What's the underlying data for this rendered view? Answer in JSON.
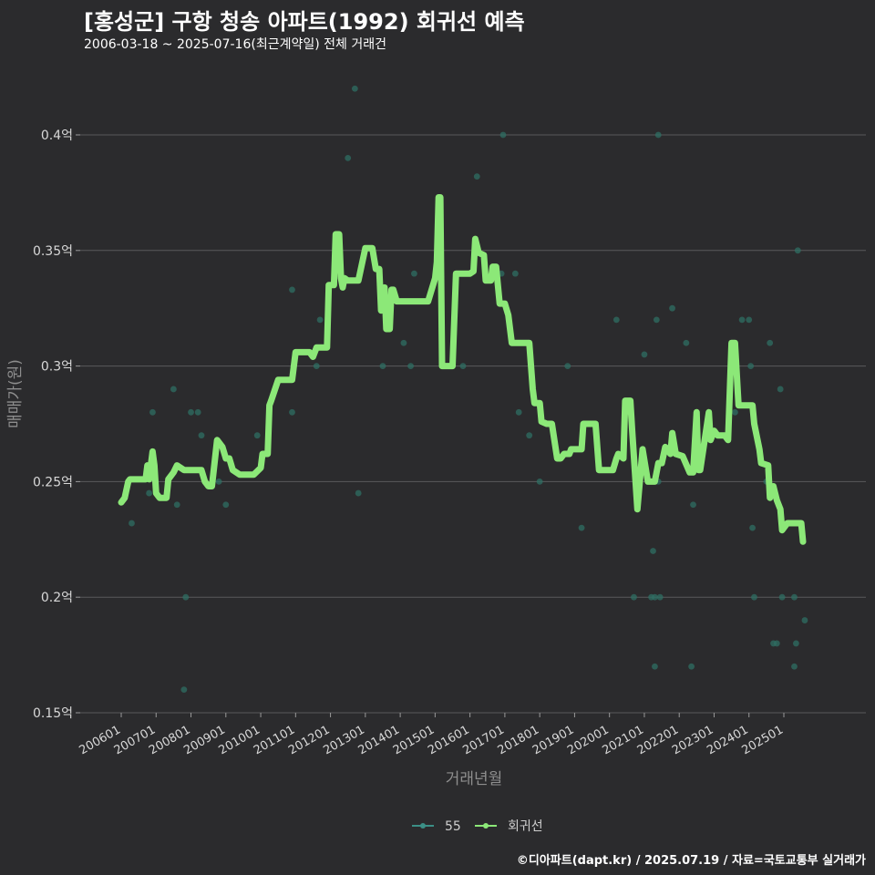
{
  "header": {
    "title": "[홍성군] 구항 청송 아파트(1992) 회귀선 예측",
    "subtitle": "2006-03-18 ~ 2025-07-16(최근계약일) 전체 거래건"
  },
  "footer": {
    "text": "©디아파트(dapt.kr) / 2025.07.19 / 자료=국토교통부 실거래가"
  },
  "colors": {
    "background": "#2b2b2d",
    "grid": "#5a5a5c",
    "scatter": "#2f6f63",
    "line": "#8ce878",
    "legend_scatter": "#3b8f86"
  },
  "chart_data": {
    "type": "line",
    "xlabel": "거래년월",
    "ylabel": "매매가(원)",
    "ylim": [
      0.145,
      0.415
    ],
    "y_ticks": [
      {
        "value": 0.15,
        "label": "0.15억"
      },
      {
        "value": 0.2,
        "label": "0.2억"
      },
      {
        "value": 0.25,
        "label": "0.25억"
      },
      {
        "value": 0.3,
        "label": "0.3억"
      },
      {
        "value": 0.35,
        "label": "0.35억"
      },
      {
        "value": 0.4,
        "label": "0.4억"
      }
    ],
    "x_ticks": [
      "200601",
      "200701",
      "200801",
      "200901",
      "201001",
      "201101",
      "201201",
      "201301",
      "201401",
      "201501",
      "201601",
      "201701",
      "201801",
      "201901",
      "202001",
      "202101",
      "202201",
      "202301",
      "202401",
      "202501"
    ],
    "legend": [
      {
        "name": "55",
        "type": "scatter"
      },
      {
        "name": "회귀선",
        "type": "line"
      }
    ],
    "series": [
      {
        "name": "55",
        "type": "scatter",
        "points": [
          [
            2006.3,
            0.232
          ],
          [
            2006.8,
            0.245
          ],
          [
            2006.9,
            0.28
          ],
          [
            2007.5,
            0.29
          ],
          [
            2007.6,
            0.24
          ],
          [
            2007.8,
            0.16
          ],
          [
            2007.85,
            0.2
          ],
          [
            2008.0,
            0.28
          ],
          [
            2008.2,
            0.28
          ],
          [
            2008.3,
            0.27
          ],
          [
            2008.8,
            0.25
          ],
          [
            2009.0,
            0.24
          ],
          [
            2009.9,
            0.27
          ],
          [
            2010.9,
            0.333
          ],
          [
            2010.9,
            0.28
          ],
          [
            2011.6,
            0.3
          ],
          [
            2011.7,
            0.32
          ],
          [
            2012.5,
            0.39
          ],
          [
            2012.7,
            0.42
          ],
          [
            2012.8,
            0.245
          ],
          [
            2013.5,
            0.3
          ],
          [
            2014.1,
            0.31
          ],
          [
            2014.3,
            0.3
          ],
          [
            2014.4,
            0.34
          ],
          [
            2015.8,
            0.3
          ],
          [
            2016.2,
            0.382
          ],
          [
            2016.9,
            0.34
          ],
          [
            2016.95,
            0.4
          ],
          [
            2017.3,
            0.34
          ],
          [
            2017.4,
            0.28
          ],
          [
            2017.7,
            0.27
          ],
          [
            2018.0,
            0.25
          ],
          [
            2018.8,
            0.3
          ],
          [
            2019.2,
            0.23
          ],
          [
            2020.2,
            0.32
          ],
          [
            2020.7,
            0.2
          ],
          [
            2020.8,
            0.25
          ],
          [
            2021.0,
            0.305
          ],
          [
            2021.2,
            0.2
          ],
          [
            2021.25,
            0.22
          ],
          [
            2021.3,
            0.17
          ],
          [
            2021.3,
            0.2
          ],
          [
            2021.35,
            0.32
          ],
          [
            2021.4,
            0.4
          ],
          [
            2021.4,
            0.25
          ],
          [
            2021.45,
            0.2
          ],
          [
            2021.8,
            0.325
          ],
          [
            2022.2,
            0.31
          ],
          [
            2022.35,
            0.17
          ],
          [
            2022.4,
            0.24
          ],
          [
            2023.6,
            0.28
          ],
          [
            2023.8,
            0.32
          ],
          [
            2024.0,
            0.32
          ],
          [
            2024.05,
            0.3
          ],
          [
            2024.1,
            0.23
          ],
          [
            2024.15,
            0.2
          ],
          [
            2024.5,
            0.25
          ],
          [
            2024.6,
            0.31
          ],
          [
            2024.7,
            0.18
          ],
          [
            2024.8,
            0.18
          ],
          [
            2024.9,
            0.29
          ],
          [
            2024.95,
            0.2
          ],
          [
            2025.3,
            0.2
          ],
          [
            2025.3,
            0.17
          ],
          [
            2025.35,
            0.18
          ],
          [
            2025.4,
            0.35
          ],
          [
            2025.6,
            0.19
          ]
        ]
      },
      {
        "name": "회귀선",
        "type": "line",
        "points": [
          [
            2006.0,
            0.241
          ],
          [
            2006.1,
            0.243
          ],
          [
            2006.2,
            0.25
          ],
          [
            2006.25,
            0.251
          ],
          [
            2006.7,
            0.251
          ],
          [
            2006.75,
            0.257
          ],
          [
            2006.8,
            0.251
          ],
          [
            2006.9,
            0.263
          ],
          [
            2006.95,
            0.257
          ],
          [
            2007.0,
            0.245
          ],
          [
            2007.1,
            0.243
          ],
          [
            2007.3,
            0.243
          ],
          [
            2007.35,
            0.251
          ],
          [
            2007.5,
            0.254
          ],
          [
            2007.6,
            0.257
          ],
          [
            2007.8,
            0.255
          ],
          [
            2008.3,
            0.255
          ],
          [
            2008.4,
            0.25
          ],
          [
            2008.5,
            0.248
          ],
          [
            2008.6,
            0.248
          ],
          [
            2008.75,
            0.268
          ],
          [
            2008.9,
            0.265
          ],
          [
            2009.0,
            0.26
          ],
          [
            2009.1,
            0.26
          ],
          [
            2009.2,
            0.255
          ],
          [
            2009.4,
            0.253
          ],
          [
            2009.8,
            0.253
          ],
          [
            2010.0,
            0.256
          ],
          [
            2010.05,
            0.262
          ],
          [
            2010.2,
            0.262
          ],
          [
            2010.25,
            0.283
          ],
          [
            2010.3,
            0.285
          ],
          [
            2010.5,
            0.294
          ],
          [
            2010.9,
            0.294
          ],
          [
            2011.0,
            0.306
          ],
          [
            2011.4,
            0.306
          ],
          [
            2011.5,
            0.304
          ],
          [
            2011.6,
            0.308
          ],
          [
            2011.9,
            0.308
          ],
          [
            2011.95,
            0.335
          ],
          [
            2012.1,
            0.335
          ],
          [
            2012.15,
            0.357
          ],
          [
            2012.25,
            0.357
          ],
          [
            2012.3,
            0.338
          ],
          [
            2012.35,
            0.334
          ],
          [
            2012.4,
            0.338
          ],
          [
            2012.5,
            0.337
          ],
          [
            2012.8,
            0.337
          ],
          [
            2013.0,
            0.351
          ],
          [
            2013.2,
            0.351
          ],
          [
            2013.3,
            0.342
          ],
          [
            2013.4,
            0.342
          ],
          [
            2013.45,
            0.324
          ],
          [
            2013.55,
            0.334
          ],
          [
            2013.6,
            0.316
          ],
          [
            2013.7,
            0.316
          ],
          [
            2013.75,
            0.333
          ],
          [
            2013.8,
            0.333
          ],
          [
            2013.9,
            0.328
          ],
          [
            2014.8,
            0.328
          ],
          [
            2015.0,
            0.338
          ],
          [
            2015.05,
            0.345
          ],
          [
            2015.1,
            0.373
          ],
          [
            2015.15,
            0.373
          ],
          [
            2015.2,
            0.3
          ],
          [
            2015.5,
            0.3
          ],
          [
            2015.6,
            0.34
          ],
          [
            2016.0,
            0.34
          ],
          [
            2016.1,
            0.341
          ],
          [
            2016.15,
            0.355
          ],
          [
            2016.25,
            0.349
          ],
          [
            2016.4,
            0.348
          ],
          [
            2016.45,
            0.337
          ],
          [
            2016.6,
            0.337
          ],
          [
            2016.65,
            0.343
          ],
          [
            2016.75,
            0.343
          ],
          [
            2016.85,
            0.327
          ],
          [
            2017.0,
            0.327
          ],
          [
            2017.1,
            0.322
          ],
          [
            2017.2,
            0.31
          ],
          [
            2017.7,
            0.31
          ],
          [
            2017.8,
            0.29
          ],
          [
            2017.85,
            0.284
          ],
          [
            2018.0,
            0.284
          ],
          [
            2018.05,
            0.276
          ],
          [
            2018.2,
            0.275
          ],
          [
            2018.35,
            0.275
          ],
          [
            2018.5,
            0.26
          ],
          [
            2018.6,
            0.26
          ],
          [
            2018.7,
            0.262
          ],
          [
            2018.85,
            0.262
          ],
          [
            2018.9,
            0.264
          ],
          [
            2019.2,
            0.264
          ],
          [
            2019.25,
            0.275
          ],
          [
            2019.6,
            0.275
          ],
          [
            2019.7,
            0.255
          ],
          [
            2020.1,
            0.255
          ],
          [
            2020.2,
            0.26
          ],
          [
            2020.25,
            0.262
          ],
          [
            2020.4,
            0.26
          ],
          [
            2020.45,
            0.285
          ],
          [
            2020.6,
            0.285
          ],
          [
            2020.65,
            0.272
          ],
          [
            2020.8,
            0.238
          ],
          [
            2020.95,
            0.264
          ],
          [
            2021.1,
            0.25
          ],
          [
            2021.3,
            0.25
          ],
          [
            2021.4,
            0.258
          ],
          [
            2021.5,
            0.258
          ],
          [
            2021.6,
            0.265
          ],
          [
            2021.75,
            0.262
          ],
          [
            2021.8,
            0.271
          ],
          [
            2021.9,
            0.262
          ],
          [
            2022.1,
            0.261
          ],
          [
            2022.3,
            0.254
          ],
          [
            2022.4,
            0.254
          ],
          [
            2022.5,
            0.28
          ],
          [
            2022.55,
            0.255
          ],
          [
            2022.6,
            0.255
          ],
          [
            2022.75,
            0.27
          ],
          [
            2022.85,
            0.28
          ],
          [
            2022.9,
            0.268
          ],
          [
            2023.0,
            0.272
          ],
          [
            2023.1,
            0.27
          ],
          [
            2023.3,
            0.27
          ],
          [
            2023.4,
            0.268
          ],
          [
            2023.5,
            0.31
          ],
          [
            2023.6,
            0.31
          ],
          [
            2023.7,
            0.283
          ],
          [
            2024.1,
            0.283
          ],
          [
            2024.15,
            0.275
          ],
          [
            2024.3,
            0.264
          ],
          [
            2024.35,
            0.258
          ],
          [
            2024.55,
            0.257
          ],
          [
            2024.6,
            0.243
          ],
          [
            2024.7,
            0.248
          ],
          [
            2024.8,
            0.242
          ],
          [
            2024.9,
            0.238
          ],
          [
            2024.95,
            0.229
          ],
          [
            2025.1,
            0.232
          ],
          [
            2025.5,
            0.232
          ],
          [
            2025.55,
            0.224
          ]
        ]
      }
    ]
  }
}
